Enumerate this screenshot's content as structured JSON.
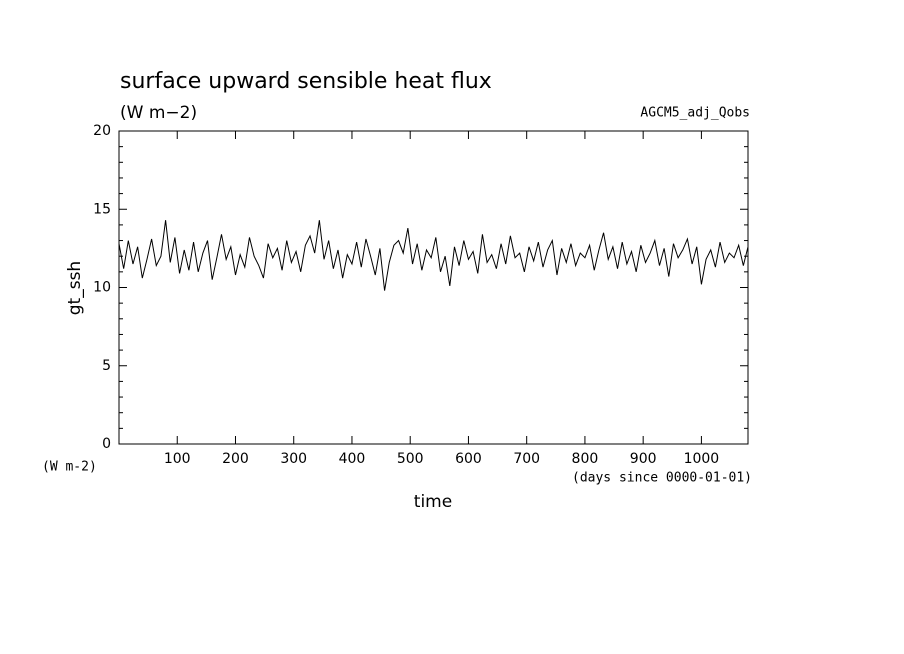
{
  "chart_data": {
    "type": "line",
    "title": "surface upward sensible heat flux",
    "subtitle": "(W m−2)",
    "annotation": "AGCM5_adj_Qobs",
    "ylabel": "gt_ssh",
    "yunits": "(W m-2)",
    "xlabel": "time",
    "xunits": "(days since 0000-01-01)",
    "xlim": [
      0,
      1080
    ],
    "ylim": [
      0,
      20
    ],
    "xticks": [
      100,
      200,
      300,
      400,
      500,
      600,
      700,
      800,
      900,
      1000
    ],
    "yticks": [
      0,
      5,
      10,
      15,
      20
    ],
    "yminorticks": [
      1,
      2,
      3,
      4,
      6,
      7,
      8,
      9,
      11,
      12,
      13,
      14,
      16,
      17,
      18,
      19
    ],
    "color": "#000000",
    "x": [
      0,
      8,
      16,
      24,
      32,
      40,
      48,
      56,
      64,
      72,
      80,
      88,
      96,
      104,
      112,
      120,
      128,
      136,
      144,
      152,
      160,
      168,
      176,
      184,
      192,
      200,
      208,
      216,
      224,
      232,
      240,
      248,
      256,
      264,
      272,
      280,
      288,
      296,
      304,
      312,
      320,
      328,
      336,
      344,
      352,
      360,
      368,
      376,
      384,
      392,
      400,
      408,
      416,
      424,
      432,
      440,
      448,
      456,
      464,
      472,
      480,
      488,
      496,
      504,
      512,
      520,
      528,
      536,
      544,
      552,
      560,
      568,
      576,
      584,
      592,
      600,
      608,
      616,
      624,
      632,
      640,
      648,
      656,
      664,
      672,
      680,
      688,
      696,
      704,
      712,
      720,
      728,
      736,
      744,
      752,
      760,
      768,
      776,
      784,
      792,
      800,
      808,
      816,
      824,
      832,
      840,
      848,
      856,
      864,
      872,
      880,
      888,
      896,
      904,
      912,
      920,
      928,
      936,
      944,
      952,
      960,
      968,
      976,
      984,
      992,
      1000,
      1008,
      1016,
      1024,
      1032,
      1040,
      1048,
      1056,
      1064,
      1072,
      1080
    ],
    "values": [
      12.8,
      11.2,
      13.0,
      11.5,
      12.6,
      10.6,
      11.8,
      13.1,
      11.4,
      12.0,
      14.3,
      11.6,
      13.2,
      10.9,
      12.4,
      11.1,
      12.9,
      11.0,
      12.2,
      13.0,
      10.5,
      11.9,
      13.4,
      11.8,
      12.6,
      10.8,
      12.1,
      11.3,
      13.2,
      12.0,
      11.4,
      10.6,
      12.8,
      11.9,
      12.5,
      11.1,
      13.0,
      11.6,
      12.3,
      11.0,
      12.7,
      13.3,
      12.2,
      14.3,
      11.8,
      13.0,
      11.2,
      12.4,
      10.6,
      12.1,
      11.5,
      12.9,
      11.3,
      13.1,
      12.0,
      10.8,
      12.5,
      9.8,
      11.6,
      12.7,
      13.0,
      12.2,
      13.8,
      11.5,
      12.8,
      11.1,
      12.4,
      11.9,
      13.2,
      11.0,
      12.0,
      10.1,
      12.6,
      11.4,
      13.0,
      11.8,
      12.3,
      10.9,
      13.4,
      11.6,
      12.1,
      11.2,
      12.8,
      11.5,
      13.3,
      11.9,
      12.2,
      11.0,
      12.6,
      11.7,
      12.9,
      11.3,
      12.4,
      13.0,
      10.8,
      12.5,
      11.6,
      12.8,
      11.4,
      12.2,
      11.9,
      12.7,
      11.1,
      12.4,
      13.5,
      11.8,
      12.6,
      11.2,
      12.9,
      11.5,
      12.3,
      11.0,
      12.7,
      11.6,
      12.2,
      13.0,
      11.4,
      12.5,
      10.7,
      12.8,
      11.9,
      12.4,
      13.1,
      11.5,
      12.6,
      10.2,
      11.8,
      12.4,
      11.3,
      12.9,
      11.6,
      12.2,
      11.9,
      12.7,
      11.4,
      12.6
    ]
  }
}
